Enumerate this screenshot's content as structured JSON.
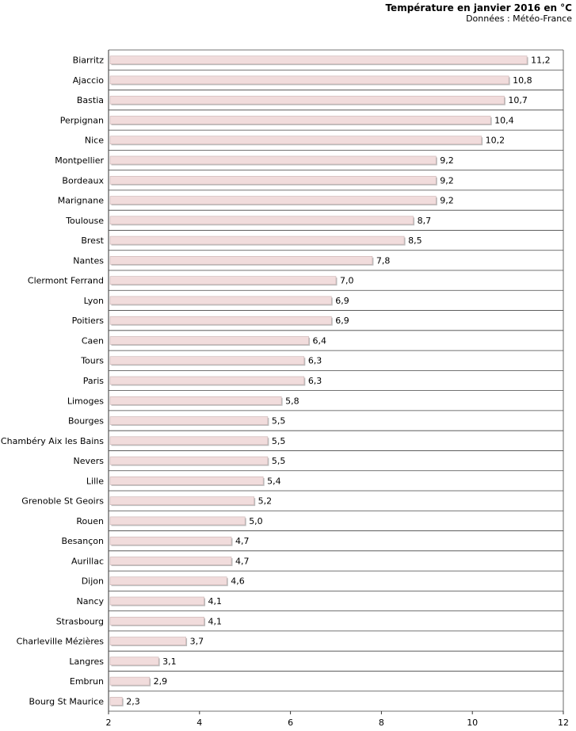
{
  "header": {
    "title": "Température en janvier 2016 en °C",
    "subtitle": "Données : Météo-France"
  },
  "colors": {
    "bar_fill": "#f1dcdc",
    "bar_stroke": "#c9b0b0",
    "bar_shadow": "#bcbcbc",
    "grid": "#444444",
    "axis": "#333333"
  },
  "chart_data": {
    "type": "bar",
    "orientation": "horizontal",
    "title": "Température en janvier 2016 en °C",
    "subtitle": "Données : Météo-France",
    "categories": [
      "Biarritz",
      "Ajaccio",
      "Bastia",
      "Perpignan",
      "Nice",
      "Montpellier",
      "Bordeaux",
      "Marignane",
      "Toulouse",
      "Brest",
      "Nantes",
      "Clermont Ferrand",
      "Lyon",
      "Poitiers",
      "Caen",
      "Tours",
      "Paris",
      "Limoges",
      "Bourges",
      "Chambéry Aix les Bains",
      "Nevers",
      "Lille",
      "Grenoble St Geoirs",
      "Rouen",
      "Besançon",
      "Aurillac",
      "Dijon",
      "Nancy",
      "Strasbourg",
      "Charleville Mézières",
      "Langres",
      "Embrun",
      "Bourg St Maurice"
    ],
    "values": [
      11.2,
      10.8,
      10.7,
      10.4,
      10.2,
      9.2,
      9.2,
      9.2,
      8.7,
      8.5,
      7.8,
      7.0,
      6.9,
      6.9,
      6.4,
      6.3,
      6.3,
      5.8,
      5.5,
      5.5,
      5.5,
      5.4,
      5.2,
      5.0,
      4.7,
      4.7,
      4.6,
      4.1,
      4.1,
      3.7,
      3.1,
      2.9,
      2.3
    ],
    "value_labels": [
      "11,2",
      "10,8",
      "10,7",
      "10,4",
      "10,2",
      "9,2",
      "9,2",
      "9,2",
      "8,7",
      "8,5",
      "7,8",
      "7,0",
      "6,9",
      "6,9",
      "6,4",
      "6,3",
      "6,3",
      "5,8",
      "5,5",
      "5,5",
      "5,5",
      "5,4",
      "5,2",
      "5,0",
      "4,7",
      "4,7",
      "4,6",
      "4,1",
      "4,1",
      "3,7",
      "3,1",
      "2,9",
      "2,3"
    ],
    "xlim": [
      2,
      12
    ],
    "xticks": [
      2,
      4,
      6,
      8,
      10,
      12
    ],
    "xtick_labels": [
      "2",
      "4",
      "6",
      "8",
      "10",
      "12"
    ],
    "grid": "horizontal separators between categories",
    "legend": "none"
  }
}
